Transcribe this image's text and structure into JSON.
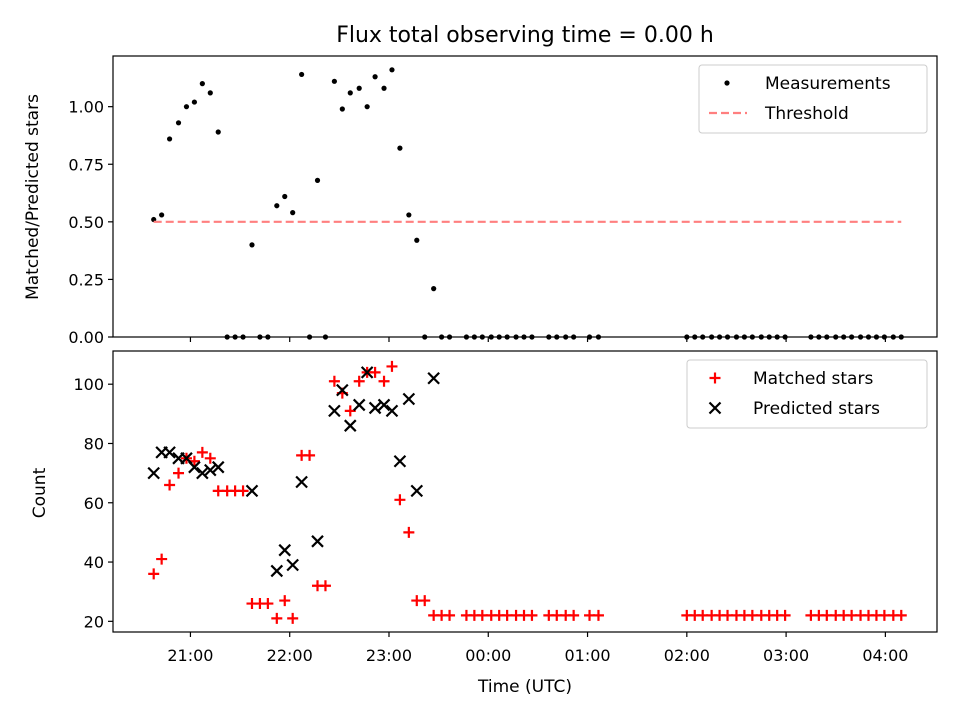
{
  "chart_data": {
    "title": "Flux total observing time = 0.00 h",
    "xlabel": "Time (UTC)",
    "x_unit": "hours (21.0 = 21:00, 24.0 = 00:00 next day)",
    "xlim": [
      20.22,
      28.52
    ],
    "xticks": [
      {
        "value": 21,
        "label": "21:00"
      },
      {
        "value": 22,
        "label": "22:00"
      },
      {
        "value": 23,
        "label": "23:00"
      },
      {
        "value": 24,
        "label": "00:00"
      },
      {
        "value": 25,
        "label": "01:00"
      },
      {
        "value": 26,
        "label": "02:00"
      },
      {
        "value": 27,
        "label": "03:00"
      },
      {
        "value": 28,
        "label": "04:00"
      }
    ],
    "panels": [
      {
        "type": "scatter",
        "ylabel": "Matched/Predicted stars",
        "ylim": [
          0,
          1.22
        ],
        "yticks": [
          {
            "value": 0,
            "label": "0.00"
          },
          {
            "value": 0.25,
            "label": "0.25"
          },
          {
            "value": 0.5,
            "label": "0.50"
          },
          {
            "value": 0.75,
            "label": "0.75"
          },
          {
            "value": 1.0,
            "label": "1.00"
          }
        ],
        "legend": {
          "placement": "top-right",
          "entries": [
            "Measurements",
            "Threshold"
          ]
        },
        "series": [
          {
            "name": "Measurements",
            "kind": "dot",
            "color": "#000000",
            "points": [
              [
                20.63,
                0.51
              ],
              [
                20.71,
                0.53
              ],
              [
                20.79,
                0.86
              ],
              [
                20.88,
                0.93
              ],
              [
                20.96,
                1.0
              ],
              [
                21.04,
                1.02
              ],
              [
                21.12,
                1.1
              ],
              [
                21.2,
                1.06
              ],
              [
                21.28,
                0.89
              ],
              [
                21.37,
                0.0
              ],
              [
                21.45,
                0.0
              ],
              [
                21.53,
                0.0
              ],
              [
                21.62,
                0.4
              ],
              [
                21.7,
                0.0
              ],
              [
                21.78,
                0.0
              ],
              [
                21.87,
                0.57
              ],
              [
                21.95,
                0.61
              ],
              [
                22.03,
                0.54
              ],
              [
                22.12,
                1.14
              ],
              [
                22.2,
                0.0
              ],
              [
                22.28,
                0.68
              ],
              [
                22.36,
                0.0
              ],
              [
                22.45,
                1.11
              ],
              [
                22.53,
                0.99
              ],
              [
                22.61,
                1.06
              ],
              [
                22.7,
                1.08
              ],
              [
                22.78,
                1.0
              ],
              [
                22.86,
                1.13
              ],
              [
                22.95,
                1.08
              ],
              [
                23.03,
                1.16
              ],
              [
                23.11,
                0.82
              ],
              [
                23.2,
                0.53
              ],
              [
                23.28,
                0.42
              ],
              [
                23.36,
                0.0
              ],
              [
                23.45,
                0.21
              ],
              [
                23.53,
                0.0
              ],
              [
                23.61,
                0.0
              ],
              [
                23.78,
                0.0
              ],
              [
                23.86,
                0.0
              ],
              [
                23.94,
                0.0
              ],
              [
                24.03,
                0.0
              ],
              [
                24.11,
                0.0
              ],
              [
                24.19,
                0.0
              ],
              [
                24.28,
                0.0
              ],
              [
                24.36,
                0.0
              ],
              [
                24.44,
                0.0
              ],
              [
                24.61,
                0.0
              ],
              [
                24.69,
                0.0
              ],
              [
                24.78,
                0.0
              ],
              [
                24.86,
                0.0
              ],
              [
                25.02,
                0.0
              ],
              [
                25.11,
                0.0
              ],
              [
                26.0,
                0.0
              ],
              [
                26.08,
                0.0
              ],
              [
                26.16,
                0.0
              ],
              [
                26.25,
                0.0
              ],
              [
                26.33,
                0.0
              ],
              [
                26.41,
                0.0
              ],
              [
                26.5,
                0.0
              ],
              [
                26.58,
                0.0
              ],
              [
                26.66,
                0.0
              ],
              [
                26.75,
                0.0
              ],
              [
                26.83,
                0.0
              ],
              [
                26.91,
                0.0
              ],
              [
                26.99,
                0.0
              ],
              [
                27.25,
                0.0
              ],
              [
                27.33,
                0.0
              ],
              [
                27.41,
                0.0
              ],
              [
                27.5,
                0.0
              ],
              [
                27.58,
                0.0
              ],
              [
                27.66,
                0.0
              ],
              [
                27.75,
                0.0
              ],
              [
                27.83,
                0.0
              ],
              [
                27.91,
                0.0
              ],
              [
                27.99,
                0.0
              ],
              [
                28.08,
                0.0
              ],
              [
                28.16,
                0.0
              ]
            ]
          },
          {
            "name": "Threshold",
            "kind": "dashed-line",
            "color": "#ff7f7f",
            "points": [
              [
                20.63,
                0.5
              ],
              [
                28.16,
                0.5
              ]
            ]
          }
        ]
      },
      {
        "type": "scatter",
        "ylabel": "Count",
        "ylim": [
          16.4,
          111.2
        ],
        "yticks": [
          {
            "value": 20,
            "label": "20"
          },
          {
            "value": 40,
            "label": "40"
          },
          {
            "value": 60,
            "label": "60"
          },
          {
            "value": 80,
            "label": "80"
          },
          {
            "value": 100,
            "label": "100"
          }
        ],
        "legend": {
          "placement": "top-right",
          "entries": [
            "Matched stars",
            "Predicted stars"
          ]
        },
        "series": [
          {
            "name": "Matched stars",
            "kind": "plus",
            "color": "#ff0000",
            "points": [
              [
                20.63,
                36
              ],
              [
                20.71,
                41
              ],
              [
                20.79,
                66
              ],
              [
                20.88,
                70
              ],
              [
                20.96,
                75
              ],
              [
                21.04,
                74
              ],
              [
                21.12,
                77
              ],
              [
                21.2,
                75
              ],
              [
                21.28,
                64
              ],
              [
                21.37,
                64
              ],
              [
                21.45,
                64
              ],
              [
                21.53,
                64
              ],
              [
                21.62,
                26
              ],
              [
                21.7,
                26
              ],
              [
                21.78,
                26
              ],
              [
                21.87,
                21
              ],
              [
                21.95,
                27
              ],
              [
                22.03,
                21
              ],
              [
                22.12,
                76
              ],
              [
                22.2,
                76
              ],
              [
                22.28,
                32
              ],
              [
                22.36,
                32
              ],
              [
                22.45,
                101
              ],
              [
                22.53,
                97
              ],
              [
                22.61,
                91
              ],
              [
                22.7,
                101
              ],
              [
                22.78,
                104
              ],
              [
                22.86,
                104
              ],
              [
                22.95,
                101
              ],
              [
                23.03,
                106
              ],
              [
                23.11,
                61
              ],
              [
                23.2,
                50
              ],
              [
                23.28,
                27
              ],
              [
                23.36,
                27
              ],
              [
                23.45,
                22
              ],
              [
                23.53,
                22
              ],
              [
                23.61,
                22
              ],
              [
                23.78,
                22
              ],
              [
                23.86,
                22
              ],
              [
                23.94,
                22
              ],
              [
                24.03,
                22
              ],
              [
                24.11,
                22
              ],
              [
                24.19,
                22
              ],
              [
                24.28,
                22
              ],
              [
                24.36,
                22
              ],
              [
                24.44,
                22
              ],
              [
                24.61,
                22
              ],
              [
                24.69,
                22
              ],
              [
                24.78,
                22
              ],
              [
                24.86,
                22
              ],
              [
                25.02,
                22
              ],
              [
                25.11,
                22
              ],
              [
                26.0,
                22
              ],
              [
                26.08,
                22
              ],
              [
                26.16,
                22
              ],
              [
                26.25,
                22
              ],
              [
                26.33,
                22
              ],
              [
                26.41,
                22
              ],
              [
                26.5,
                22
              ],
              [
                26.58,
                22
              ],
              [
                26.66,
                22
              ],
              [
                26.75,
                22
              ],
              [
                26.83,
                22
              ],
              [
                26.91,
                22
              ],
              [
                26.99,
                22
              ],
              [
                27.25,
                22
              ],
              [
                27.33,
                22
              ],
              [
                27.41,
                22
              ],
              [
                27.5,
                22
              ],
              [
                27.58,
                22
              ],
              [
                27.66,
                22
              ],
              [
                27.75,
                22
              ],
              [
                27.83,
                22
              ],
              [
                27.91,
                22
              ],
              [
                27.99,
                22
              ],
              [
                28.08,
                22
              ],
              [
                28.16,
                22
              ]
            ]
          },
          {
            "name": "Predicted stars",
            "kind": "cross",
            "color": "#000000",
            "points": [
              [
                20.63,
                70
              ],
              [
                20.79,
                77
              ],
              [
                20.71,
                77
              ],
              [
                20.88,
                75
              ],
              [
                20.96,
                75
              ],
              [
                21.04,
                72
              ],
              [
                21.12,
                70
              ],
              [
                21.2,
                71
              ],
              [
                21.28,
                72
              ],
              [
                21.62,
                64
              ],
              [
                21.87,
                37
              ],
              [
                21.95,
                44
              ],
              [
                22.03,
                39
              ],
              [
                22.12,
                67
              ],
              [
                22.28,
                47
              ],
              [
                22.45,
                91
              ],
              [
                22.53,
                98
              ],
              [
                22.61,
                86
              ],
              [
                22.7,
                93
              ],
              [
                22.78,
                104
              ],
              [
                22.86,
                92
              ],
              [
                22.95,
                93
              ],
              [
                23.03,
                91
              ],
              [
                23.11,
                74
              ],
              [
                23.2,
                95
              ],
              [
                23.28,
                64
              ],
              [
                23.45,
                102
              ]
            ]
          }
        ]
      }
    ]
  }
}
